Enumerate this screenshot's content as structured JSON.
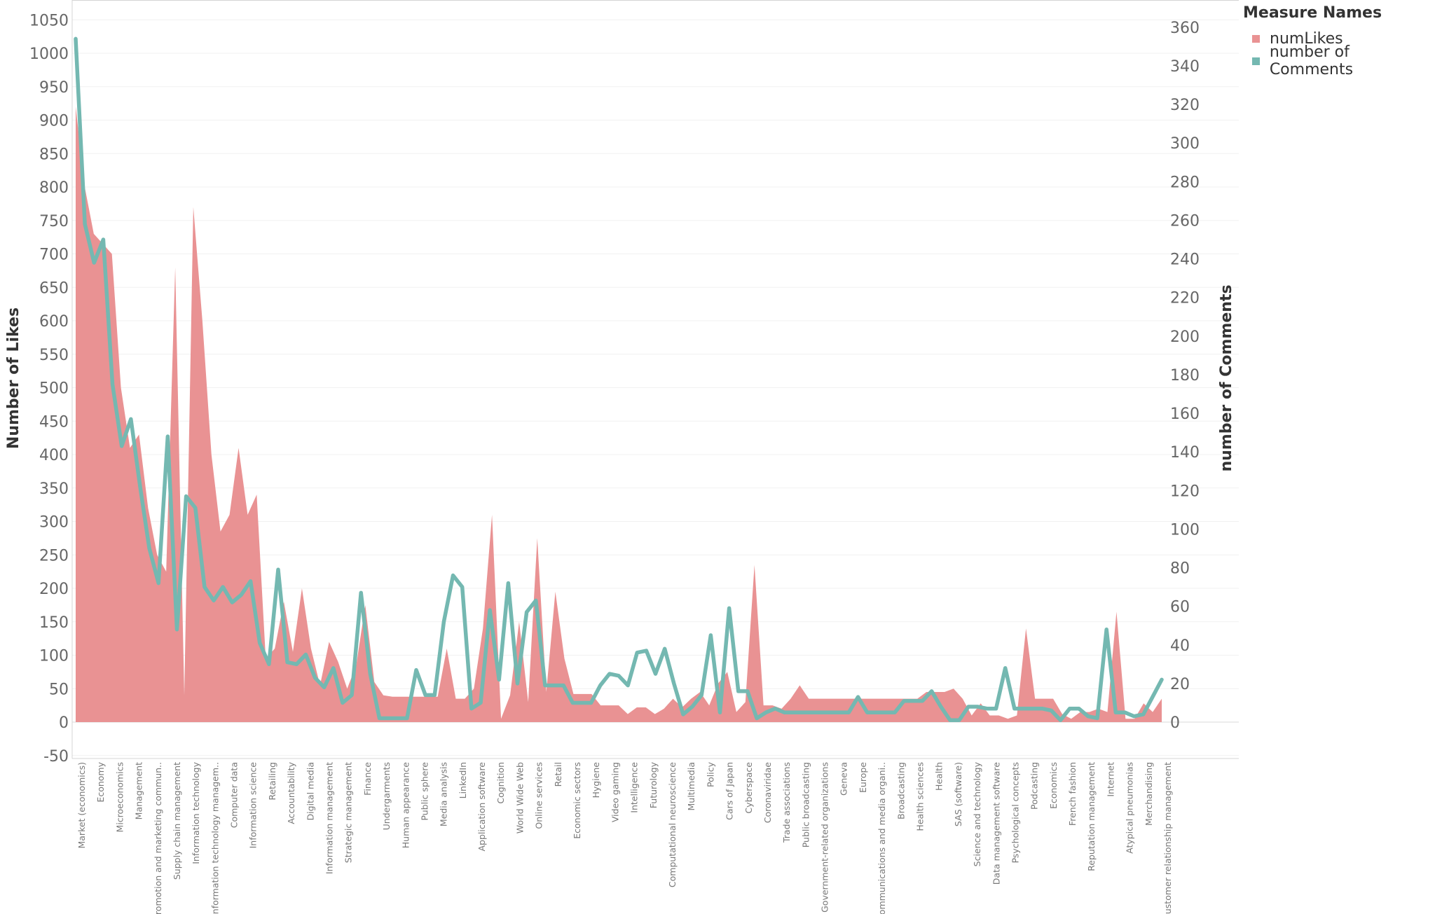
{
  "chart_data": {
    "type": "area",
    "left_axis_title": "Number of Likes",
    "right_axis_title": "number of Comments",
    "left_ticks": [
      "1050",
      "1000",
      "950",
      "900",
      "850",
      "800",
      "750",
      "700",
      "650",
      "600",
      "550",
      "500",
      "450",
      "400",
      "350",
      "300",
      "250",
      "200",
      "150",
      "100",
      "50",
      "0",
      "-50"
    ],
    "right_ticks": [
      "360",
      "340",
      "320",
      "300",
      "280",
      "260",
      "240",
      "220",
      "200",
      "180",
      "160",
      "140",
      "120",
      "100",
      "80",
      "60",
      "40",
      "20",
      "0"
    ],
    "ylim_left": [
      -55,
      1065
    ],
    "ylim_right": [
      -18.85,
      365.02
    ],
    "grid": true,
    "legend": {
      "title": "Measure Names",
      "position": "top-right",
      "items": [
        {
          "name": "numLikes",
          "color": "#e99293"
        },
        {
          "name": "number of Comments",
          "color": "#74b8b1"
        }
      ]
    },
    "category_labels": [
      {
        "index": 1,
        "text": "Market (economics)"
      },
      {
        "index": 4,
        "text": "Economy"
      },
      {
        "index": 7,
        "text": "Microeconomics"
      },
      {
        "index": 10,
        "text": "Management"
      },
      {
        "index": 13,
        "text": "Promotion and marketing commun.."
      },
      {
        "index": 16,
        "text": "Supply chain management"
      },
      {
        "index": 19,
        "text": "Information technology"
      },
      {
        "index": 22,
        "text": "Information technology managem.."
      },
      {
        "index": 25,
        "text": "Computer data"
      },
      {
        "index": 28,
        "text": "Information science"
      },
      {
        "index": 31,
        "text": "Retailing"
      },
      {
        "index": 34,
        "text": "Accountability"
      },
      {
        "index": 37,
        "text": "Digital media"
      },
      {
        "index": 40,
        "text": "Information management"
      },
      {
        "index": 43,
        "text": "Strategic management"
      },
      {
        "index": 46,
        "text": "Finance"
      },
      {
        "index": 49,
        "text": "Undergarments"
      },
      {
        "index": 52,
        "text": "Human appearance"
      },
      {
        "index": 55,
        "text": "Public sphere"
      },
      {
        "index": 58,
        "text": "Media analysis"
      },
      {
        "index": 61,
        "text": "LinkedIn"
      },
      {
        "index": 64,
        "text": "Application software"
      },
      {
        "index": 67,
        "text": "Cognition"
      },
      {
        "index": 70,
        "text": "World Wide Web"
      },
      {
        "index": 73,
        "text": "Online services"
      },
      {
        "index": 76,
        "text": "Retail"
      },
      {
        "index": 79,
        "text": "Economic sectors"
      },
      {
        "index": 82,
        "text": "Hygiene"
      },
      {
        "index": 85,
        "text": "Video gaming"
      },
      {
        "index": 88,
        "text": "Intelligence"
      },
      {
        "index": 91,
        "text": "Futurology"
      },
      {
        "index": 94,
        "text": "Computational neuroscience"
      },
      {
        "index": 97,
        "text": "Multimedia"
      },
      {
        "index": 100,
        "text": "Policy"
      },
      {
        "index": 103,
        "text": "Cars of Japan"
      },
      {
        "index": 106,
        "text": "Cyberspace"
      },
      {
        "index": 109,
        "text": "Coronaviridae"
      },
      {
        "index": 112,
        "text": "Trade associations"
      },
      {
        "index": 115,
        "text": "Public broadcasting"
      },
      {
        "index": 118,
        "text": "Government-related organizations"
      },
      {
        "index": 121,
        "text": "Geneva"
      },
      {
        "index": 124,
        "text": "Europe"
      },
      {
        "index": 127,
        "text": "Communications and media organi.."
      },
      {
        "index": 130,
        "text": "Broadcasting"
      },
      {
        "index": 133,
        "text": "Health sciences"
      },
      {
        "index": 136,
        "text": "Health"
      },
      {
        "index": 139,
        "text": "SAS (software)"
      },
      {
        "index": 142,
        "text": "Science and technology"
      },
      {
        "index": 145,
        "text": "Data management software"
      },
      {
        "index": 148,
        "text": "Psychological concepts"
      },
      {
        "index": 151,
        "text": "Podcasting"
      },
      {
        "index": 154,
        "text": "Economics"
      },
      {
        "index": 157,
        "text": "French fashion"
      },
      {
        "index": 160,
        "text": "Reputation management"
      },
      {
        "index": 163,
        "text": "Internet"
      },
      {
        "index": 166,
        "text": "Atypical pneumonias"
      },
      {
        "index": 169,
        "text": "Merchandising"
      },
      {
        "index": 172,
        "text": "Customer relationship management"
      }
    ],
    "series": [
      {
        "name": "numLikes",
        "kind": "area",
        "axis": "left",
        "color": "#e99293",
        "values": [
          920,
          800,
          730,
          715,
          700,
          500,
          410,
          430,
          320,
          250,
          225,
          680,
          40,
          770,
          600,
          400,
          285,
          310,
          410,
          310,
          340,
          95,
          110,
          180,
          105,
          200,
          110,
          55,
          120,
          90,
          50,
          85,
          175,
          60,
          40,
          38,
          38,
          38,
          38,
          38,
          38,
          110,
          35,
          35,
          50,
          140,
          310,
          5,
          40,
          150,
          30,
          275,
          45,
          195,
          95,
          42,
          42,
          42,
          25,
          25,
          25,
          12,
          22,
          22,
          12,
          20,
          35,
          22,
          35,
          45,
          25,
          58,
          75,
          15,
          30,
          235,
          25,
          25,
          20,
          35,
          55,
          35,
          35,
          35,
          35,
          35,
          35,
          35,
          35,
          35,
          35,
          35,
          35,
          35,
          45,
          45,
          45,
          50,
          35,
          10,
          28,
          10,
          10,
          5,
          10,
          140,
          35,
          35,
          35,
          12,
          5,
          15,
          15,
          20,
          15,
          165,
          5,
          5,
          28,
          15,
          35
        ]
      },
      {
        "name": "number of Comments",
        "kind": "line",
        "axis": "right",
        "color": "#74b8b1",
        "values": [
          354,
          258,
          238,
          250,
          175,
          143,
          157,
          122,
          90,
          72,
          148,
          48,
          117,
          111,
          70,
          63,
          70,
          62,
          66,
          73,
          41,
          30,
          79,
          31,
          30,
          35,
          23,
          18,
          28,
          10,
          14,
          67,
          25,
          2,
          2,
          2,
          2,
          27,
          14,
          14,
          52,
          76,
          70,
          7,
          10,
          58,
          22,
          72,
          20,
          57,
          63,
          19,
          19,
          19,
          10,
          10,
          10,
          19,
          25,
          24,
          19,
          36,
          37,
          25,
          38,
          20,
          4,
          8,
          14,
          45,
          5,
          59,
          16,
          16,
          2,
          5,
          7,
          5,
          5,
          5,
          5,
          5,
          5,
          5,
          5,
          13,
          5,
          5,
          5,
          5,
          11,
          11,
          11,
          16,
          8,
          1,
          1,
          8,
          8,
          7,
          7,
          28,
          7,
          7,
          7,
          7,
          6,
          1,
          7,
          7,
          3,
          2,
          48,
          5,
          5,
          3,
          4,
          13,
          22
        ]
      }
    ]
  }
}
